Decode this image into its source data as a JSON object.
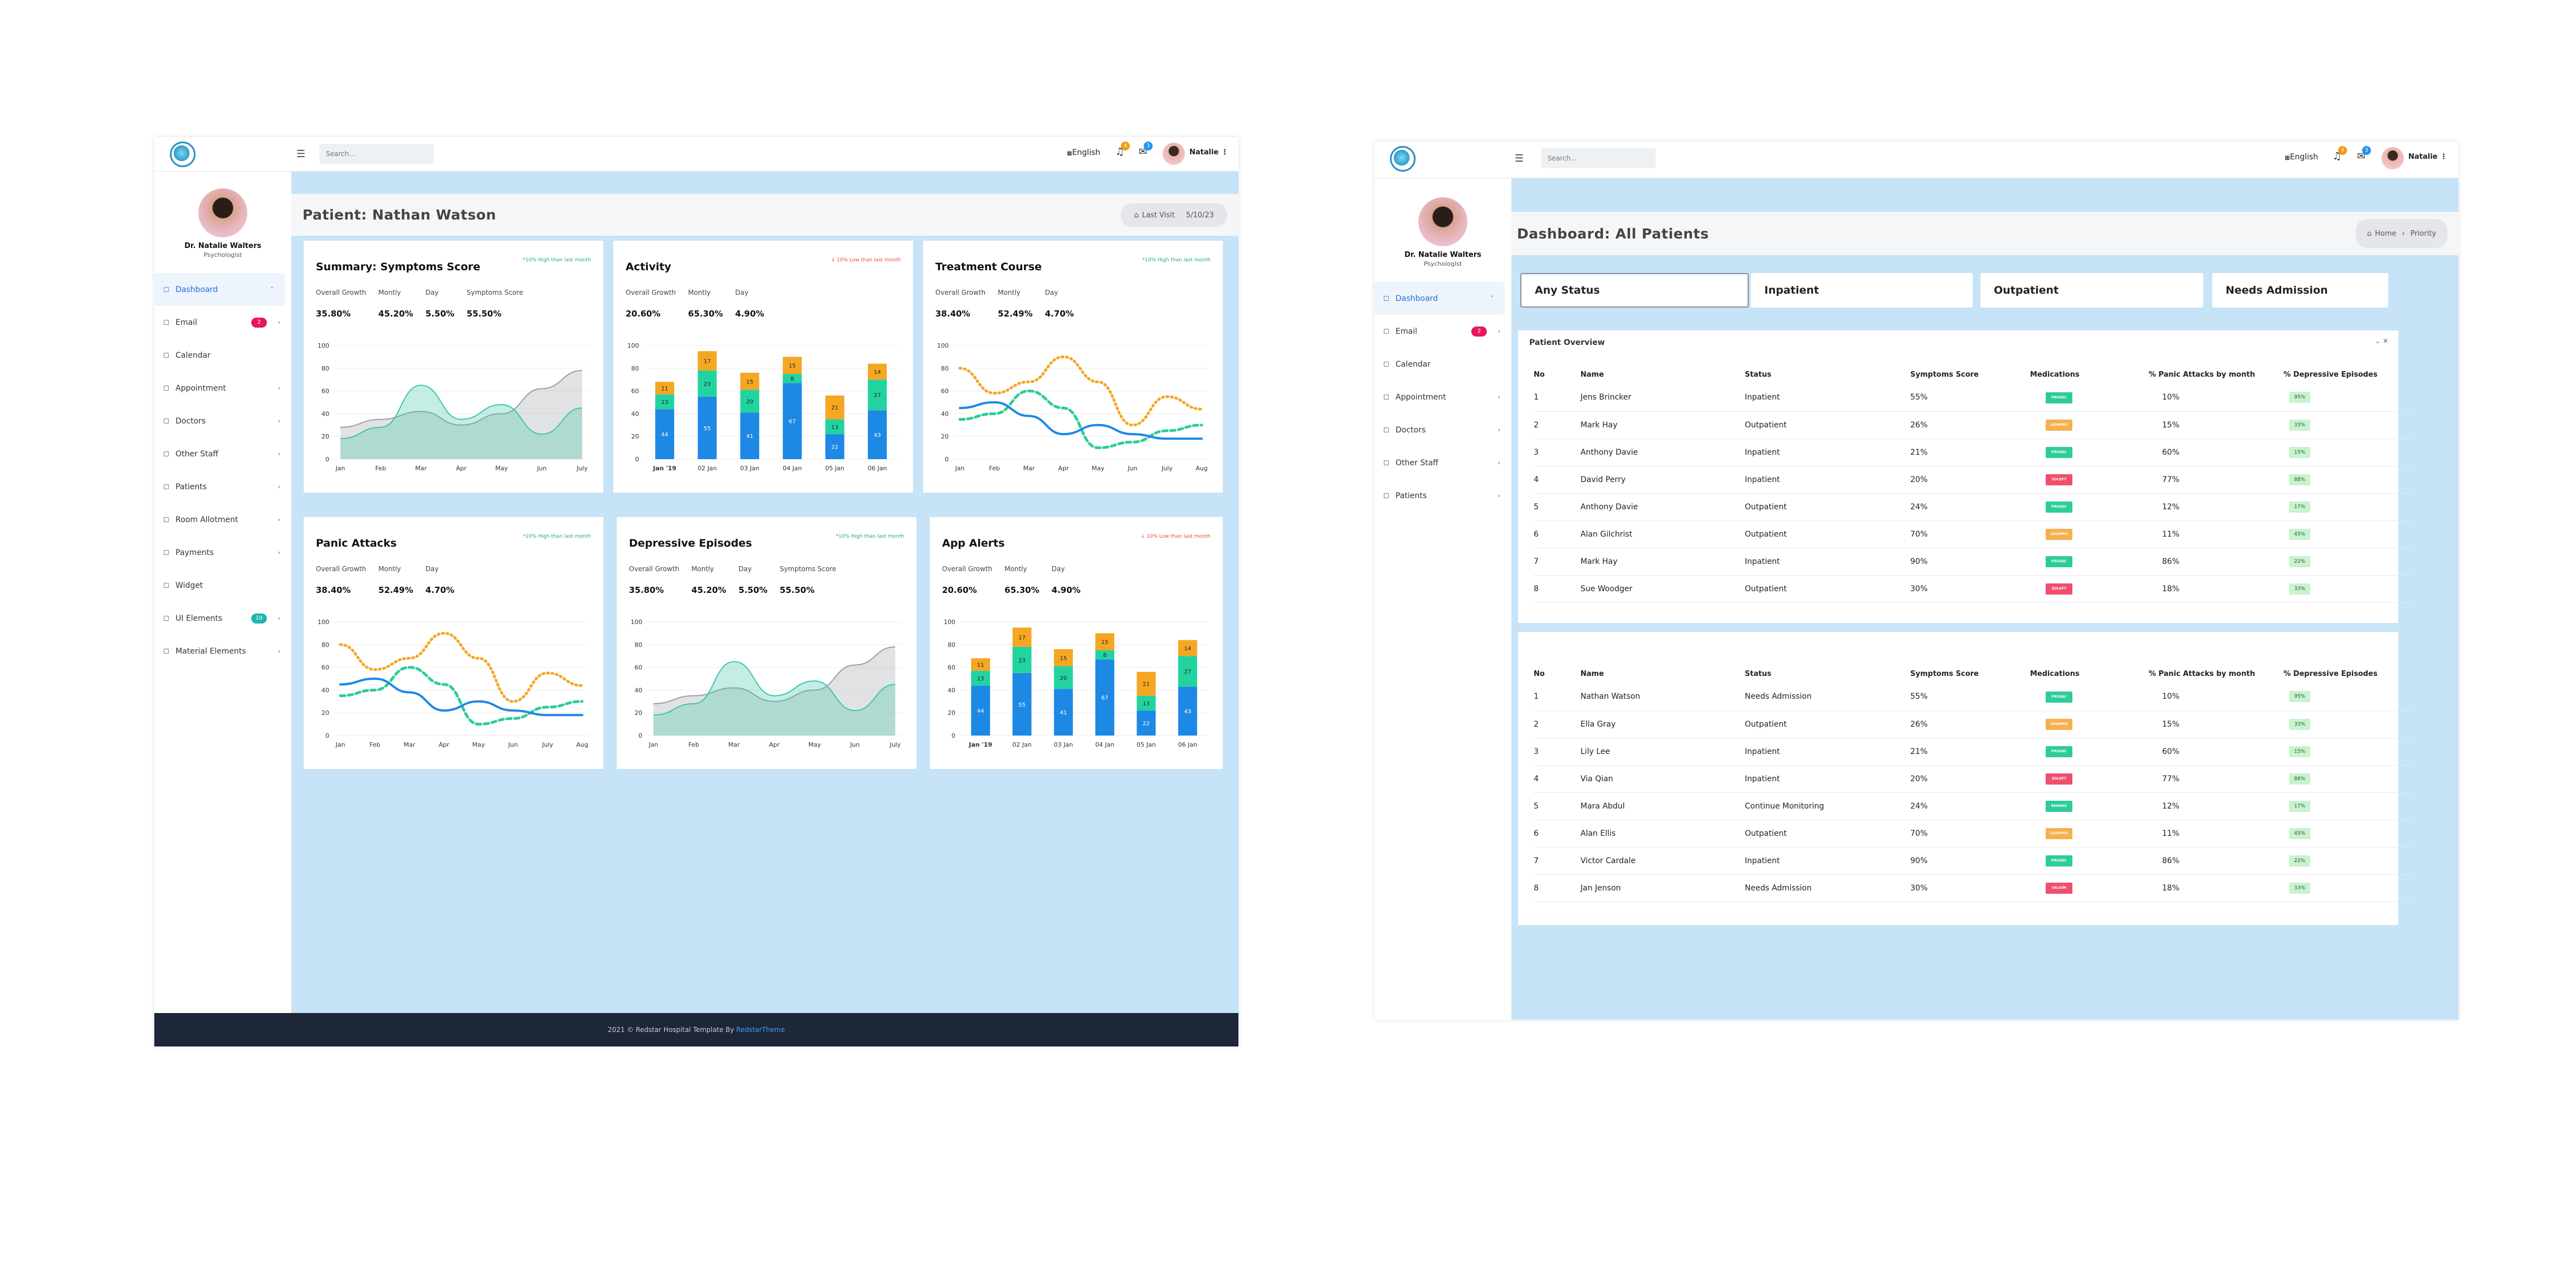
{
  "header": {
    "search_placeholder": "Search...",
    "language": "English",
    "bell_count": "4",
    "mail_count": "3",
    "user_name": "Natalie"
  },
  "profile": {
    "name": "Dr. Natalie Walters",
    "role": "Psychologist"
  },
  "sidebar_a": [
    {
      "label": "Dashboard",
      "icon": "monitor-icon",
      "active": true,
      "chevron": "˅"
    },
    {
      "label": "Email",
      "icon": "mail-icon",
      "badge": "2",
      "badge_color": "pink",
      "chevron": "›"
    },
    {
      "label": "Calendar",
      "icon": "calendar-icon",
      "chevron": ""
    },
    {
      "label": "Appointment",
      "icon": "book-icon",
      "chevron": "›"
    },
    {
      "label": "Doctors",
      "icon": "user-icon",
      "chevron": "›"
    },
    {
      "label": "Other Staff",
      "icon": "users-icon",
      "chevron": "›"
    },
    {
      "label": "Patients",
      "icon": "smile-icon",
      "chevron": "›"
    },
    {
      "label": "Room Allotment",
      "icon": "bed-icon",
      "chevron": "›"
    },
    {
      "label": "Payments",
      "icon": "dollar-icon",
      "chevron": "›"
    },
    {
      "label": "Widget",
      "icon": "grid-icon",
      "chevron": ""
    },
    {
      "label": "UI Elements",
      "icon": "copy-icon",
      "badge": "10",
      "badge_color": "teal",
      "chevron": "›"
    },
    {
      "label": "Material Elements",
      "icon": "layers-icon",
      "chevron": "›"
    }
  ],
  "sidebar_b": [
    {
      "label": "Dashboard",
      "icon": "monitor-icon",
      "active": true,
      "chevron": "˅"
    },
    {
      "label": "Email",
      "icon": "mail-icon",
      "badge": "2",
      "badge_color": "pink",
      "chevron": "›"
    },
    {
      "label": "Calendar",
      "icon": "calendar-icon",
      "chevron": ""
    },
    {
      "label": "Appointment",
      "icon": "book-icon",
      "chevron": "›"
    },
    {
      "label": "Doctors",
      "icon": "user-icon",
      "chevron": "›"
    },
    {
      "label": "Other Staff",
      "icon": "users-icon",
      "chevron": "›"
    },
    {
      "label": "Patients",
      "icon": "smile-icon",
      "chevron": "›"
    }
  ],
  "screen_a": {
    "title": "Patient: Nathan Watson",
    "last_visit_label": "Last Visit",
    "last_visit_date": "5/10/23",
    "footer_text": "2021 © Redstar Hospital Template By ",
    "footer_link": "RedstarTheme",
    "cards": [
      {
        "title": "Summary: Symptoms Score",
        "note": "*10% High than last month",
        "note_color": "green",
        "stats": [
          [
            "Overall Growth",
            "35.80%"
          ],
          [
            "Montly",
            "45.20%"
          ],
          [
            "Day",
            "5.50%"
          ],
          [
            "Symptoms Score",
            "55.50%"
          ]
        ]
      },
      {
        "title": "Activity",
        "note": "↓ 10% Low than last month",
        "note_color": "red",
        "stats": [
          [
            "Overall Growth",
            "20.60%"
          ],
          [
            "Montly",
            "65.30%"
          ],
          [
            "Day",
            "4.90%"
          ]
        ]
      },
      {
        "title": "Treatment Course",
        "note": "*10% High than last month",
        "note_color": "green",
        "stats": [
          [
            "Overall Growth",
            "38.40%"
          ],
          [
            "Montly",
            "52.49%"
          ],
          [
            "Day",
            "4.70%"
          ]
        ]
      },
      {
        "title": "Panic Attacks",
        "note": "*10% High than last month",
        "note_color": "green",
        "stats": [
          [
            "Overall Growth",
            "38.40%"
          ],
          [
            "Montly",
            "52.49%"
          ],
          [
            "Day",
            "4.70%"
          ]
        ]
      },
      {
        "title": "Depressive Episodes",
        "note": "*10% High than last month",
        "note_color": "green",
        "stats": [
          [
            "Overall Growth",
            "35.80%"
          ],
          [
            "Montly",
            "45.20%"
          ],
          [
            "Day",
            "5.50%"
          ],
          [
            "Symptoms Score",
            "55.50%"
          ]
        ]
      },
      {
        "title": "App Alerts",
        "note": "↓ 10% Low than last month",
        "note_color": "red",
        "stats": [
          [
            "Overall Growth",
            "20.60%"
          ],
          [
            "Montly",
            "65.30%"
          ],
          [
            "Day",
            "4.90%"
          ]
        ]
      }
    ]
  },
  "chart_data": [
    {
      "type": "area",
      "ylim": [
        0,
        100
      ],
      "yticks": [
        0,
        20,
        40,
        60,
        80,
        100
      ],
      "x": [
        "Jan",
        "Feb",
        "Mar",
        "Apr",
        "May",
        "Jun",
        "July"
      ],
      "series": [
        {
          "values": [
            28,
            35,
            42,
            30,
            40,
            62,
            78
          ],
          "color": "#9aa0a6"
        },
        {
          "values": [
            18,
            28,
            65,
            35,
            48,
            22,
            45
          ],
          "color": "#3cc8a8"
        }
      ]
    },
    {
      "type": "bar",
      "ylim": [
        0,
        100
      ],
      "yticks": [
        0,
        20,
        40,
        60,
        80,
        100
      ],
      "categories": [
        "Jan '19",
        "02 Jan",
        "03 Jan",
        "04 Jan",
        "05 Jan",
        "06 Jan"
      ],
      "series": [
        {
          "values": [
            44,
            55,
            41,
            67,
            22,
            43
          ],
          "color": "#1e88e5"
        },
        {
          "values": [
            13,
            23,
            20,
            8,
            13,
            27
          ],
          "color": "#22d3a0"
        },
        {
          "values": [
            11,
            17,
            15,
            15,
            21,
            14
          ],
          "color": "#f5a623"
        }
      ]
    },
    {
      "type": "line",
      "ylim": [
        0,
        100
      ],
      "yticks": [
        0,
        20,
        40,
        60,
        80,
        100
      ],
      "x": [
        "Jan",
        "Feb",
        "Mar",
        "Apr",
        "May",
        "Jun",
        "July",
        "Aug"
      ],
      "series": [
        {
          "values": [
            80,
            58,
            68,
            90,
            68,
            30,
            55,
            44
          ],
          "color": "#f5a623",
          "dash": "dot"
        },
        {
          "values": [
            35,
            40,
            60,
            45,
            10,
            15,
            25,
            30
          ],
          "color": "#2ecc9a",
          "dash": "dash"
        },
        {
          "values": [
            45,
            50,
            38,
            22,
            30,
            22,
            18,
            18
          ],
          "color": "#1e88e5",
          "dash": "solid"
        }
      ]
    },
    {
      "type": "line",
      "ylim": [
        0,
        100
      ],
      "yticks": [
        0,
        20,
        40,
        60,
        80,
        100
      ],
      "x": [
        "Jan",
        "Feb",
        "Mar",
        "Apr",
        "May",
        "Jun",
        "July",
        "Aug"
      ],
      "series": [
        {
          "values": [
            80,
            58,
            68,
            90,
            68,
            30,
            55,
            44
          ],
          "color": "#f5a623",
          "dash": "dot"
        },
        {
          "values": [
            35,
            40,
            60,
            45,
            10,
            15,
            25,
            30
          ],
          "color": "#2ecc9a",
          "dash": "dash"
        },
        {
          "values": [
            45,
            50,
            38,
            22,
            30,
            22,
            18,
            18
          ],
          "color": "#1e88e5",
          "dash": "solid"
        }
      ]
    },
    {
      "type": "area",
      "ylim": [
        0,
        100
      ],
      "yticks": [
        0,
        20,
        40,
        60,
        80,
        100
      ],
      "x": [
        "Jan",
        "Feb",
        "Mar",
        "Apr",
        "May",
        "Jun",
        "July"
      ],
      "series": [
        {
          "values": [
            28,
            35,
            42,
            30,
            40,
            62,
            78
          ],
          "color": "#9aa0a6"
        },
        {
          "values": [
            18,
            28,
            65,
            35,
            48,
            22,
            45
          ],
          "color": "#3cc8a8"
        }
      ]
    },
    {
      "type": "bar",
      "ylim": [
        0,
        100
      ],
      "yticks": [
        0,
        20,
        40,
        60,
        80,
        100
      ],
      "categories": [
        "Jan '19",
        "02 Jan",
        "03 Jan",
        "04 Jan",
        "05 Jan",
        "06 Jan"
      ],
      "series": [
        {
          "values": [
            44,
            55,
            41,
            67,
            22,
            43
          ],
          "color": "#1e88e5"
        },
        {
          "values": [
            13,
            23,
            20,
            8,
            13,
            27
          ],
          "color": "#22d3a0"
        },
        {
          "values": [
            11,
            17,
            15,
            15,
            21,
            14
          ],
          "color": "#f5a623"
        }
      ]
    }
  ],
  "screen_b": {
    "title": "Dashboard: All Patients",
    "breadcrumb_home": "Home",
    "breadcrumb_sep": "›",
    "breadcrumb_current": "Priority",
    "status_tabs": [
      "Any Status",
      "Inpatient",
      "Outpatient",
      "Needs Admission"
    ],
    "overview_title": "Patient Overview",
    "columns": [
      "No",
      "Name",
      "Status",
      "Symptoms Score",
      "Medications",
      "% Panic Attacks by month",
      "% Depressive Episodes"
    ],
    "table1": [
      [
        "1",
        "Jens Brincker",
        "Inpatient",
        "55%",
        "PROZAC",
        "teal",
        "10%",
        "95%"
      ],
      [
        "2",
        "Mark Hay",
        "Outpatient",
        "26%",
        "LEXAPRO",
        "orange",
        "15%",
        "33%"
      ],
      [
        "3",
        "Anthony Davie",
        "Inpatient",
        "21%",
        "PROZAC",
        "teal",
        "60%",
        "15%"
      ],
      [
        "4",
        "David Perry",
        "Inpatient",
        "20%",
        "ZOLOFT",
        "red",
        "77%",
        "88%"
      ],
      [
        "5",
        "Anthony Davie",
        "Outpatient",
        "24%",
        "PROZAC",
        "teal",
        "12%",
        "17%"
      ],
      [
        "6",
        "Alan Gilchrist",
        "Outpatient",
        "70%",
        "LEXAPRO",
        "orange",
        "11%",
        "45%"
      ],
      [
        "7",
        "Mark Hay",
        "Inpatient",
        "90%",
        "PROZAC",
        "teal",
        "86%",
        "22%"
      ],
      [
        "8",
        "Sue Woodger",
        "Outpatient",
        "30%",
        "ZOLOFT",
        "red",
        "18%",
        "33%"
      ]
    ],
    "table2": [
      [
        "1",
        "Nathan Watson",
        "Needs Admission",
        "55%",
        "PROZAC",
        "teal",
        "10%",
        "95%"
      ],
      [
        "2",
        "Ella Gray",
        "Outpatient",
        "26%",
        "LEXAPRO",
        "orange",
        "15%",
        "33%"
      ],
      [
        "3",
        "Lily Lee",
        "Inpatient",
        "21%",
        "PROZAC",
        "teal",
        "60%",
        "15%"
      ],
      [
        "4",
        "Via Qian",
        "Inpatient",
        "20%",
        "ZOLOFT",
        "red",
        "77%",
        "88%"
      ],
      [
        "5",
        "Mara Abdul",
        "Continue Monitoring",
        "24%",
        "REFARIX",
        "teal",
        "12%",
        "17%"
      ],
      [
        "6",
        "Alan Ellis",
        "Outpatient",
        "70%",
        "LEXAPRO",
        "orange",
        "11%",
        "45%"
      ],
      [
        "7",
        "Victor Cardale",
        "Inpatient",
        "90%",
        "PROZAC",
        "teal",
        "86%",
        "22%"
      ],
      [
        "8",
        "Jan Jenson",
        "Needs Admission",
        "30%",
        "VALIUM",
        "red",
        "18%",
        "33%"
      ]
    ]
  }
}
